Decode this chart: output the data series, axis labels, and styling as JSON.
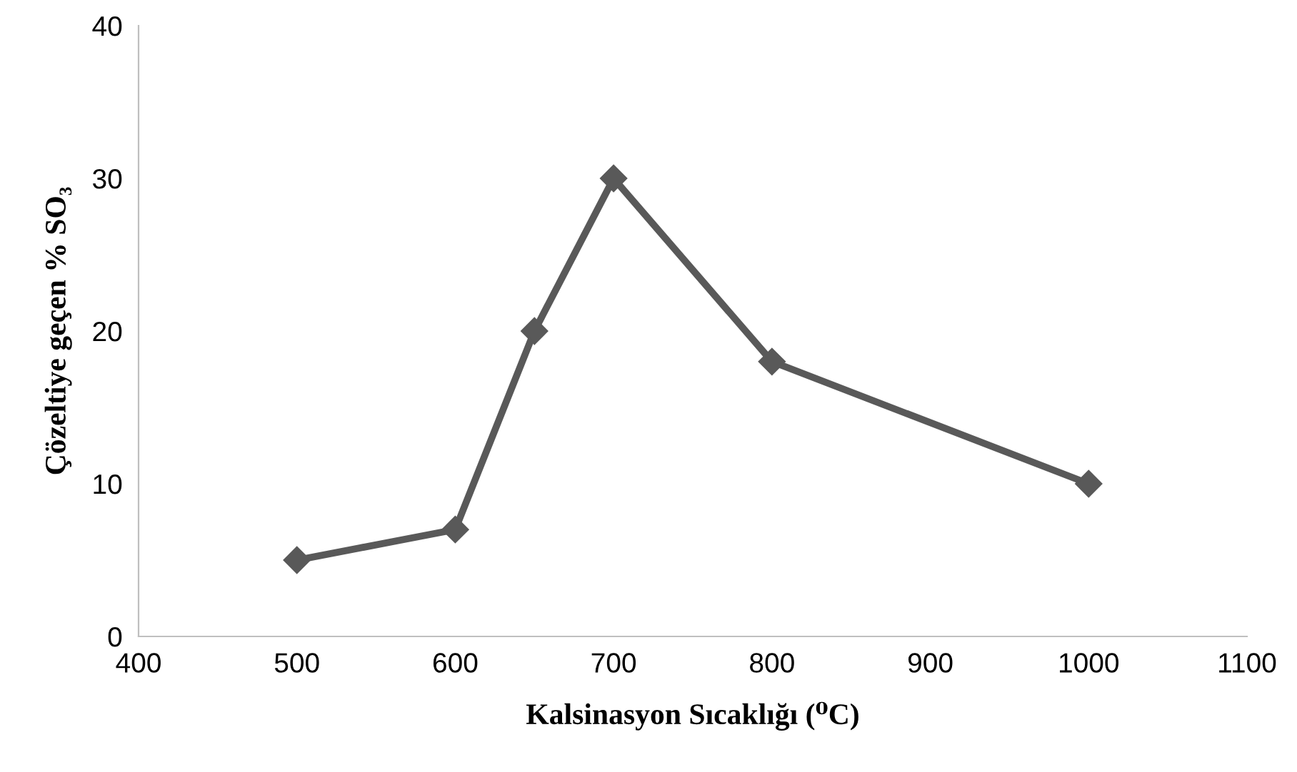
{
  "chart_data": {
    "type": "line",
    "xlabel": "Kalsinasyon Sıcaklığı (⁰C)",
    "ylabel": "Çözeltiye geçen % SO₃",
    "x": [
      500,
      600,
      650,
      700,
      800,
      1000
    ],
    "series": [
      {
        "color": "#595959",
        "values": [
          5,
          7,
          20,
          30,
          18,
          10
        ]
      }
    ],
    "xlim": [
      400,
      1100
    ],
    "xticks": [
      400,
      500,
      600,
      700,
      800,
      900,
      1000,
      1100
    ],
    "ylim": [
      0,
      40
    ],
    "yticks": [
      0,
      10,
      20,
      30,
      40
    ],
    "grid": false,
    "legend": false,
    "marker": "diamond",
    "line_style": "solid"
  }
}
